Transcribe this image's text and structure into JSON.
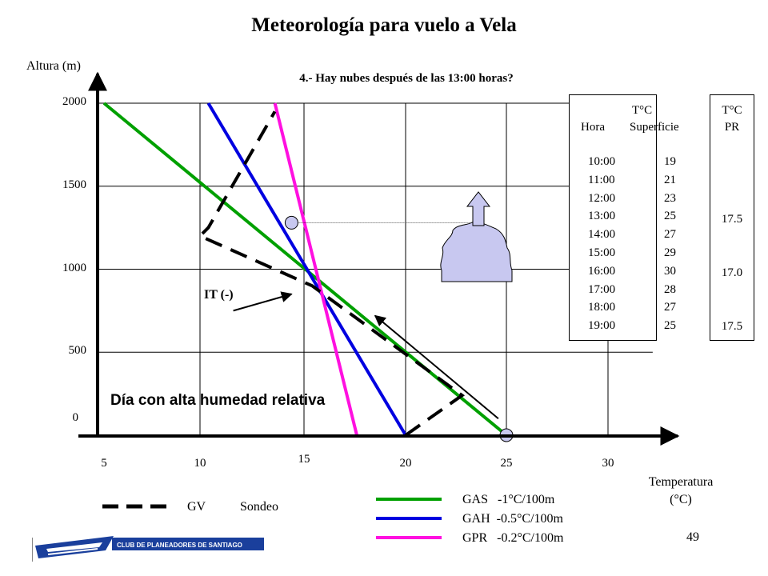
{
  "title": "Meteorología para vuelo a Vela",
  "subtitle": "4.- Hay nubes después de las 13:00 horas?",
  "y_axis_label": "Altura (m)",
  "x_axis_label": "Temperatura (°C)",
  "annotation_humidity": "Día con alta humedad relativa",
  "annotation_it": "IT (-)",
  "hour_table": {
    "header_top": "T°C",
    "header_hour": "Hora",
    "header_surface": "Superficie",
    "rows": [
      {
        "hour": "10:00",
        "temp": "19"
      },
      {
        "hour": "11:00",
        "temp": "21"
      },
      {
        "hour": "12:00",
        "temp": "23"
      },
      {
        "hour": "13:00",
        "temp": "25"
      },
      {
        "hour": "14:00",
        "temp": "27"
      },
      {
        "hour": "15:00",
        "temp": "29"
      },
      {
        "hour": "16:00",
        "temp": "30"
      },
      {
        "hour": "17:00",
        "temp": "28"
      },
      {
        "hour": "18:00",
        "temp": "27"
      },
      {
        "hour": "19:00",
        "temp": "25"
      }
    ]
  },
  "pr_table": {
    "header_1": "T°C",
    "header_2": "PR",
    "values": [
      "17.5",
      "17.0",
      "17.5"
    ]
  },
  "legend": {
    "gv": "GV",
    "sondeo": "Sondeo",
    "gas": "GAS   -1°C/100m",
    "gah": "GAH  -0.5°C/100m",
    "gpr": "GPR   -0.2°C/100m"
  },
  "page_number": "49",
  "logo_text": "CLUB DE PLANEADORES DE SANTIAGO",
  "colors": {
    "gas": "#00a000",
    "gah": "#0000e0",
    "gpr": "#ff10e0",
    "sondeo": "#000000",
    "cloud": "#c8c8f0",
    "marker": "#c8c8f0",
    "logo": "#1a3f9c"
  },
  "chart_data": {
    "type": "line",
    "title": "Meteorología para vuelo a Vela",
    "subtitle": "4.- Hay nubes después de las 13:00 horas?",
    "xlabel": "Temperatura (°C)",
    "ylabel": "Altura (m)",
    "x_ticks": [
      "5",
      "10",
      "15",
      "20",
      "25",
      "30"
    ],
    "y_ticks": [
      "0",
      "500",
      "1000",
      "1500",
      "2000"
    ],
    "xlim": [
      5,
      33
    ],
    "ylim": [
      -75,
      2000
    ],
    "grid": true,
    "series": [
      {
        "name": "GAS",
        "color": "#00a000",
        "style": "solid",
        "points": [
          [
            5,
            2000
          ],
          [
            25,
            0
          ]
        ]
      },
      {
        "name": "GAH",
        "color": "#0000e0",
        "style": "solid",
        "points": [
          [
            10.4,
            2000
          ],
          [
            20,
            0
          ]
        ]
      },
      {
        "name": "GPR",
        "color": "#ff10e0",
        "style": "solid",
        "points": [
          [
            13.6,
            2000
          ],
          [
            17.6,
            0
          ]
        ]
      },
      {
        "name": "Sondeo",
        "color": "#000000",
        "style": "dashed",
        "points": [
          [
            20,
            0
          ],
          [
            22.8,
            240
          ],
          [
            15.4,
            900
          ],
          [
            10,
            1200
          ],
          [
            10.4,
            1250
          ],
          [
            13.6,
            1950
          ]
        ]
      }
    ],
    "markers": [
      {
        "x": 14.4,
        "y": 1280
      },
      {
        "x": 25,
        "y": 0
      }
    ],
    "arrows": [
      {
        "from": [
          24.6,
          100
        ],
        "to": [
          18.5,
          720
        ]
      },
      {
        "from": [
          11.6,
          750
        ],
        "to": [
          14.4,
          850
        ]
      }
    ],
    "guide_line": {
      "from": [
        14.4,
        1280
      ],
      "to": [
        23.2,
        1280
      ]
    }
  }
}
